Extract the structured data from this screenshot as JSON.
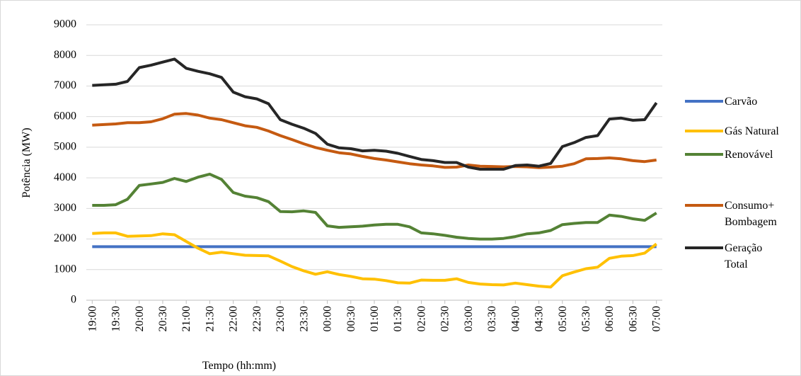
{
  "chart_data": {
    "type": "line",
    "x_label": "Tempo (hh:mm)",
    "y_label": "Potência (MW)",
    "categories": [
      "19:00",
      null,
      "19:30",
      null,
      "20:00",
      null,
      "20:30",
      null,
      "21:00",
      null,
      "21:30",
      null,
      "22:00",
      null,
      "22:30",
      null,
      "23:00",
      null,
      "23:30",
      null,
      "00:00",
      null,
      "00:30",
      null,
      "01:00",
      null,
      "01:30",
      null,
      "02:00",
      null,
      "02:30",
      null,
      "03:00",
      null,
      "03:30",
      null,
      "04:00",
      null,
      "04:30",
      null,
      "05:00",
      null,
      "05:30",
      null,
      "06:00",
      null,
      "06:30",
      null,
      "07:00"
    ],
    "ylim": [
      0,
      9000
    ],
    "yticks": [
      0,
      1000,
      2000,
      3000,
      4000,
      5000,
      6000,
      7000,
      8000,
      9000
    ],
    "grid": true,
    "legend": "right",
    "series": [
      {
        "name": "Carvão",
        "color": "#4472c4",
        "values": [
          1750,
          1750,
          1750,
          1750,
          1750,
          1750,
          1750,
          1750,
          1750,
          1750,
          1750,
          1750,
          1750,
          1750,
          1750,
          1750,
          1750,
          1750,
          1750,
          1750,
          1750,
          1750,
          1750,
          1750,
          1750,
          1750,
          1750,
          1750,
          1750,
          1750,
          1750,
          1750,
          1750,
          1750,
          1750,
          1750,
          1750,
          1750,
          1750,
          1750,
          1750,
          1750,
          1750,
          1750,
          1750,
          1750,
          1750,
          1750,
          1750
        ]
      },
      {
        "name": "Gás Natural",
        "color": "#ffc000",
        "values": [
          2180,
          2200,
          2200,
          2090,
          2100,
          2110,
          2170,
          2140,
          1920,
          1700,
          1520,
          1570,
          1520,
          1470,
          1460,
          1450,
          1280,
          1100,
          960,
          850,
          930,
          840,
          780,
          700,
          690,
          640,
          570,
          560,
          660,
          650,
          650,
          700,
          580,
          530,
          510,
          500,
          560,
          510,
          460,
          430,
          800,
          920,
          1030,
          1080,
          1370,
          1440,
          1460,
          1540,
          1840
        ]
      },
      {
        "name": "Renovável",
        "color": "#548235",
        "values": [
          3100,
          3100,
          3120,
          3300,
          3750,
          3800,
          3850,
          3980,
          3880,
          4020,
          4120,
          3950,
          3520,
          3400,
          3350,
          3220,
          2900,
          2890,
          2920,
          2870,
          2430,
          2380,
          2400,
          2420,
          2460,
          2480,
          2480,
          2400,
          2200,
          2170,
          2120,
          2060,
          2020,
          2000,
          2000,
          2020,
          2080,
          2170,
          2200,
          2280,
          2470,
          2510,
          2540,
          2540,
          2780,
          2740,
          2660,
          2610,
          2850
        ]
      },
      {
        "name": "Consumo+ Bombagem",
        "color": "#c55a11",
        "values": [
          5720,
          5740,
          5760,
          5800,
          5800,
          5830,
          5930,
          6080,
          6100,
          6050,
          5950,
          5900,
          5800,
          5700,
          5650,
          5530,
          5380,
          5250,
          5110,
          4990,
          4900,
          4820,
          4780,
          4700,
          4630,
          4580,
          4520,
          4460,
          4420,
          4390,
          4340,
          4350,
          4420,
          4380,
          4370,
          4360,
          4370,
          4360,
          4330,
          4350,
          4380,
          4460,
          4620,
          4630,
          4650,
          4620,
          4560,
          4530,
          4580
        ]
      },
      {
        "name": "Geração Total",
        "color": "#262626",
        "values": [
          7020,
          7040,
          7060,
          7150,
          7600,
          7680,
          7780,
          7880,
          7580,
          7480,
          7400,
          7280,
          6800,
          6650,
          6580,
          6420,
          5900,
          5750,
          5620,
          5450,
          5100,
          4980,
          4950,
          4880,
          4900,
          4870,
          4800,
          4700,
          4600,
          4560,
          4500,
          4500,
          4350,
          4280,
          4280,
          4280,
          4400,
          4420,
          4380,
          4470,
          5020,
          5150,
          5320,
          5380,
          5920,
          5950,
          5880,
          5900,
          6450
        ]
      }
    ]
  }
}
